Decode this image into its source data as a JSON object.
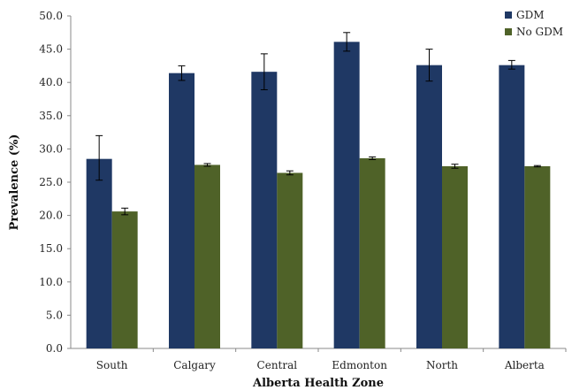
{
  "chart_data": {
    "type": "bar",
    "xlabel": "Alberta Health Zone",
    "ylabel": "Prevalence (%)",
    "ylim": [
      0,
      50
    ],
    "yticks": [
      "0.0",
      "5.0",
      "10.0",
      "15.0",
      "20.0",
      "25.0",
      "30.0",
      "35.0",
      "40.0",
      "45.0",
      "50.0"
    ],
    "categories": [
      "South",
      "Calgary",
      "Central",
      "Edmonton",
      "North",
      "Alberta"
    ],
    "legend_position": "top-right",
    "grid": false,
    "series": [
      {
        "name": "GDM",
        "color": "#1F3864",
        "values": [
          28.5,
          41.4,
          41.6,
          46.1,
          42.6,
          42.6
        ],
        "error_low": [
          25.3,
          40.3,
          38.9,
          44.7,
          40.2,
          42.0
        ],
        "error_high": [
          32.0,
          42.5,
          44.3,
          47.5,
          45.0,
          43.3
        ]
      },
      {
        "name": "No GDM",
        "color": "#4F6228",
        "values": [
          20.6,
          27.6,
          26.4,
          28.6,
          27.4,
          27.4
        ],
        "error_low": [
          20.1,
          27.4,
          26.1,
          28.4,
          27.1,
          27.3
        ],
        "error_high": [
          21.1,
          27.8,
          26.7,
          28.8,
          27.7,
          27.5
        ]
      }
    ]
  }
}
